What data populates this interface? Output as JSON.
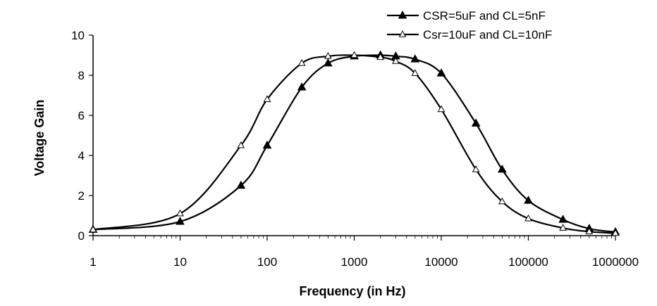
{
  "chart_data": {
    "type": "line",
    "title": "",
    "xlabel": "Frequency (in Hz)",
    "ylabel": "Voltage Gain",
    "xscale": "log",
    "xlim": [
      1,
      1000000
    ],
    "ylim": [
      0,
      10
    ],
    "x_ticks": [
      1,
      10,
      100,
      1000,
      10000,
      100000,
      1000000
    ],
    "x_tick_labels": [
      "1",
      "10",
      "100",
      "1000",
      "10000",
      "100000",
      "1000000"
    ],
    "y_ticks": [
      0,
      2,
      4,
      6,
      8,
      10
    ],
    "y_tick_labels": [
      "0",
      "2",
      "4",
      "6",
      "8",
      "10"
    ],
    "grid": false,
    "legend_position": "top-right",
    "series": [
      {
        "name": "CSR=5uF and CL=5nF",
        "marker": "filled-triangle",
        "x": [
          1,
          10,
          50,
          100,
          250,
          500,
          1000,
          2000,
          3000,
          5000,
          10000,
          25000,
          50000,
          100000,
          250000,
          500000,
          1000000
        ],
        "y": [
          0.3,
          0.7,
          2.5,
          4.5,
          7.4,
          8.6,
          8.95,
          9.0,
          8.95,
          8.8,
          8.1,
          5.6,
          3.3,
          1.75,
          0.8,
          0.35,
          0.18
        ]
      },
      {
        "name": "Csr=10uF and CL=10nF",
        "marker": "open-triangle",
        "x": [
          1,
          10,
          50,
          100,
          250,
          500,
          1000,
          2000,
          3000,
          5000,
          10000,
          25000,
          50000,
          100000,
          250000,
          500000,
          1000000
        ],
        "y": [
          0.3,
          1.1,
          4.5,
          6.8,
          8.6,
          8.95,
          9.0,
          8.9,
          8.7,
          8.1,
          6.3,
          3.3,
          1.7,
          0.85,
          0.38,
          0.2,
          0.12
        ]
      }
    ]
  }
}
